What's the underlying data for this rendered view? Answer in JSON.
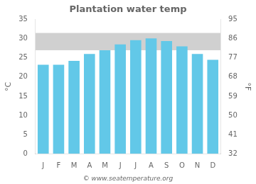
{
  "chart_data": {
    "type": "bar",
    "title": "Plantation water temp",
    "categories": [
      "J",
      "F",
      "M",
      "A",
      "M",
      "J",
      "J",
      "A",
      "S",
      "O",
      "N",
      "D"
    ],
    "values": [
      23.2,
      23.2,
      24.2,
      26.0,
      27.0,
      28.5,
      29.6,
      30.1,
      29.4,
      28.0,
      26.0,
      24.5
    ],
    "color": "#62c8e8",
    "ylabel": "°C",
    "y2label": "°F",
    "ylim": [
      0,
      35
    ],
    "yticks": [
      0,
      5,
      10,
      15,
      20,
      25,
      30,
      35
    ],
    "y2lim": [
      32,
      95
    ],
    "y2ticks": [
      32,
      41,
      50,
      59,
      68,
      77,
      86,
      95
    ],
    "shaded_band": {
      "from": 27.0,
      "to": 31.5,
      "color": "#d0d0d0"
    },
    "annotations": [
      "© www.seatemperature.org"
    ],
    "grid": false
  }
}
